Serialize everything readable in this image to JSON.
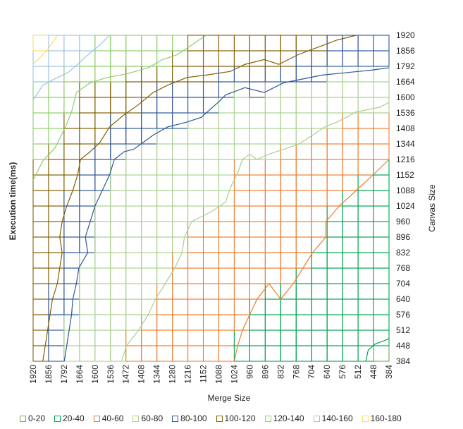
{
  "chart_data": {
    "type": "surface-contour",
    "title": "",
    "xlabel": "Merge Size",
    "ylabel_left": "Execution time(ms)",
    "ylabel_right": "Canvas Size",
    "x_ticks": [
      "1920",
      "1856",
      "1792",
      "1664",
      "1600",
      "1536",
      "1472",
      "1408",
      "1344",
      "1280",
      "1216",
      "1152",
      "1088",
      "1024",
      "960",
      "896",
      "832",
      "768",
      "704",
      "640",
      "576",
      "512",
      "448",
      "384"
    ],
    "y_ticks": [
      "1920",
      "1856",
      "1792",
      "1664",
      "1600",
      "1536",
      "1408",
      "1344",
      "1216",
      "1152",
      "1088",
      "1024",
      "960",
      "896",
      "832",
      "768",
      "704",
      "640",
      "576",
      "512",
      "448",
      "384"
    ],
    "grid": true,
    "legend_position": "bottom",
    "bands": [
      {
        "name": "0-20",
        "color": "#70ad47"
      },
      {
        "name": "20-40",
        "color": "#00a550"
      },
      {
        "name": "40-60",
        "color": "#ed7d31"
      },
      {
        "name": "60-80",
        "color": "#a9d18e"
      },
      {
        "name": "80-100",
        "color": "#2f5597"
      },
      {
        "name": "100-120",
        "color": "#806000"
      },
      {
        "name": "120-140",
        "color": "#8fce6b"
      },
      {
        "name": "140-160",
        "color": "#9dc3e6"
      },
      {
        "name": "160-180",
        "color": "#ffd966"
      }
    ],
    "band_order_bottom_to_top": [
      "20-40",
      "40-60",
      "60-80",
      "80-100",
      "100-120",
      "120-140",
      "140-160",
      "160-180"
    ],
    "contour_boundaries": [
      {
        "between": "20-40/40-60",
        "points": [
          [
            1024,
            384
          ],
          [
            1010,
            448
          ],
          [
            990,
            512
          ],
          [
            960,
            576
          ],
          [
            930,
            640
          ],
          [
            880,
            704
          ],
          [
            832,
            640
          ],
          [
            780,
            704
          ],
          [
            740,
            768
          ],
          [
            700,
            832
          ],
          [
            645,
            896
          ],
          [
            645,
            960
          ],
          [
            590,
            1024
          ],
          [
            520,
            1088
          ],
          [
            450,
            1152
          ],
          [
            384,
            1216
          ]
        ]
      },
      {
        "between": "40-60/60-80",
        "points": [
          [
            1490,
            384
          ],
          [
            1470,
            448
          ],
          [
            1420,
            512
          ],
          [
            1380,
            576
          ],
          [
            1350,
            640
          ],
          [
            1310,
            704
          ],
          [
            1270,
            768
          ],
          [
            1240,
            832
          ],
          [
            1230,
            896
          ],
          [
            1200,
            960
          ],
          [
            1120,
            1000
          ],
          [
            1060,
            1040
          ],
          [
            1040,
            1100
          ],
          [
            1010,
            1160
          ],
          [
            990,
            1216
          ],
          [
            960,
            1260
          ],
          [
            930,
            1216
          ],
          [
            880,
            1260
          ],
          [
            820,
            1300
          ],
          [
            760,
            1340
          ],
          [
            700,
            1380
          ],
          [
            650,
            1420
          ],
          [
            600,
            1460
          ],
          [
            560,
            1500
          ],
          [
            520,
            1540
          ],
          [
            420,
            1560
          ],
          [
            384,
            1580
          ]
        ]
      },
      {
        "between": "60-80/80-100",
        "points": [
          [
            1790,
            384
          ],
          [
            1770,
            448
          ],
          [
            1750,
            512
          ],
          [
            1730,
            576
          ],
          [
            1720,
            640
          ],
          [
            1690,
            704
          ],
          [
            1670,
            768
          ],
          [
            1630,
            832
          ],
          [
            1640,
            896
          ],
          [
            1620,
            960
          ],
          [
            1600,
            1024
          ],
          [
            1570,
            1088
          ],
          [
            1540,
            1152
          ],
          [
            1520,
            1216
          ],
          [
            1480,
            1280
          ],
          [
            1440,
            1300
          ],
          [
            1360,
            1380
          ],
          [
            1300,
            1420
          ],
          [
            1220,
            1460
          ],
          [
            1160,
            1500
          ],
          [
            1090,
            1580
          ],
          [
            1060,
            1610
          ],
          [
            980,
            1640
          ],
          [
            900,
            1620
          ],
          [
            820,
            1660
          ],
          [
            760,
            1680
          ],
          [
            660,
            1720
          ],
          [
            560,
            1740
          ],
          [
            460,
            1760
          ],
          [
            384,
            1780
          ]
        ]
      },
      {
        "between": "80-100/100-120",
        "points": [
          [
            1880,
            384
          ],
          [
            1870,
            448
          ],
          [
            1860,
            512
          ],
          [
            1850,
            576
          ],
          [
            1840,
            640
          ],
          [
            1820,
            704
          ],
          [
            1810,
            768
          ],
          [
            1800,
            832
          ],
          [
            1810,
            896
          ],
          [
            1800,
            960
          ],
          [
            1770,
            1024
          ],
          [
            1720,
            1088
          ],
          [
            1680,
            1152
          ],
          [
            1660,
            1216
          ],
          [
            1620,
            1280
          ],
          [
            1580,
            1350
          ],
          [
            1540,
            1420
          ],
          [
            1480,
            1520
          ],
          [
            1420,
            1570
          ],
          [
            1360,
            1620
          ],
          [
            1300,
            1650
          ],
          [
            1220,
            1700
          ],
          [
            1140,
            1720
          ],
          [
            1040,
            1750
          ],
          [
            980,
            1800
          ],
          [
            900,
            1820
          ],
          [
            840,
            1800
          ],
          [
            760,
            1840
          ],
          [
            680,
            1870
          ],
          [
            600,
            1900
          ],
          [
            520,
            1920
          ]
        ]
      },
      {
        "between": "100-120/120-140",
        "points": [
          [
            1920,
            1130
          ],
          [
            1880,
            1210
          ],
          [
            1830,
            1310
          ],
          [
            1780,
            1420
          ],
          [
            1730,
            1540
          ],
          [
            1690,
            1620
          ],
          [
            1620,
            1660
          ],
          [
            1550,
            1700
          ],
          [
            1470,
            1730
          ],
          [
            1380,
            1780
          ],
          [
            1320,
            1820
          ],
          [
            1260,
            1840
          ],
          [
            1200,
            1880
          ],
          [
            1140,
            1920
          ]
        ]
      },
      {
        "between": "120-140/140-160",
        "points": [
          [
            1920,
            1590
          ],
          [
            1880,
            1650
          ],
          [
            1820,
            1700
          ],
          [
            1760,
            1740
          ],
          [
            1700,
            1790
          ],
          [
            1640,
            1830
          ],
          [
            1580,
            1880
          ],
          [
            1540,
            1920
          ]
        ]
      },
      {
        "between": "140-160/160-180",
        "points": [
          [
            1920,
            1800
          ],
          [
            1860,
            1860
          ],
          [
            1820,
            1920
          ]
        ]
      },
      {
        "between": "0-20/20-40",
        "points": [
          [
            480,
            384
          ],
          [
            470,
            430
          ],
          [
            440,
            456
          ],
          [
            400,
            470
          ],
          [
            384,
            478
          ]
        ]
      }
    ]
  },
  "legend": {
    "items": [
      "0-20",
      "20-40",
      "40-60",
      "60-80",
      "80-100",
      "100-120",
      "120-140",
      "140-160",
      "160-180"
    ]
  }
}
